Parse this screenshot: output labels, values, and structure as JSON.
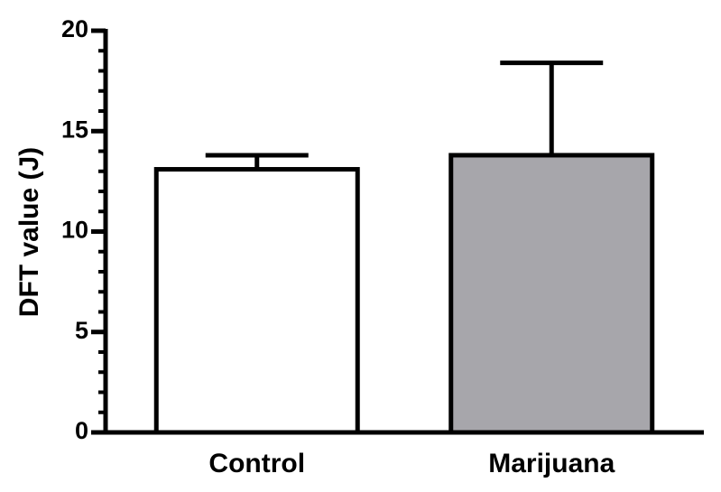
{
  "chart_data": {
    "type": "bar",
    "y_label": "DFT value (J)",
    "categories": [
      "Control",
      "Marijuana"
    ],
    "values": [
      13.1,
      13.8
    ],
    "errors": [
      0.7,
      4.6
    ],
    "colors": [
      "#ffffff",
      "#a7a6ab"
    ],
    "ylim": [
      0,
      20
    ],
    "yticks": [
      0,
      5,
      10,
      15,
      20
    ],
    "minor_tick_step": 1,
    "grid": false
  }
}
